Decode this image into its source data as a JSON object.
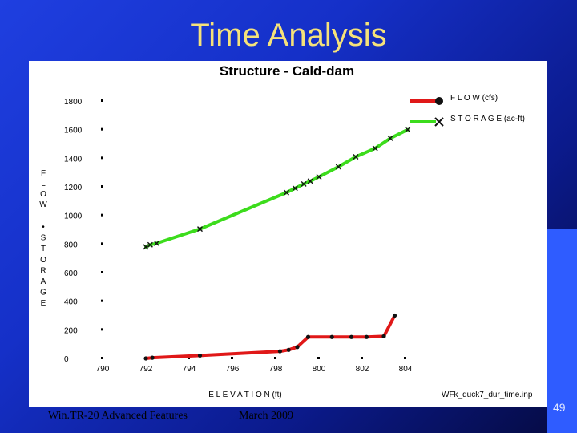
{
  "slide": {
    "title": "Time Analysis",
    "footer_left": "Win.TR-20 Advanced Features",
    "footer_mid": "March 2009",
    "page_number": "49"
  },
  "chart_data": {
    "type": "line",
    "title": "Structure - Cald-dam",
    "xlabel": "E L E V A T I O N (ft)",
    "ylabel_chars": [
      "F",
      "L",
      "O",
      "W",
      "•",
      "S",
      "T",
      "O",
      "R",
      "A",
      "G",
      "E"
    ],
    "xlim": [
      790,
      804
    ],
    "ylim": [
      0,
      1800
    ],
    "x_ticks": [
      "790",
      "792",
      "794",
      "796",
      "798",
      "800",
      "802",
      "804"
    ],
    "y_ticks": [
      "0",
      "200",
      "400",
      "600",
      "800",
      "1000",
      "1200",
      "1400",
      "1600",
      "1800"
    ],
    "file_label": "WFk_duck7_dur_time.inp",
    "legend_position": "top-right",
    "series": [
      {
        "name": "F L O W (cfs)",
        "color": "#e01818",
        "marker": "dot",
        "x": [
          792.0,
          792.3,
          794.5,
          798.2,
          798.6,
          799.0,
          799.5,
          800.6,
          801.5,
          802.2,
          803.0,
          803.5
        ],
        "y": [
          0,
          5,
          20,
          50,
          60,
          80,
          150,
          150,
          150,
          150,
          155,
          300
        ]
      },
      {
        "name": "S T O R A G E (ac-ft)",
        "color": "#3cdc1c",
        "marker": "x",
        "x": [
          792.0,
          792.2,
          792.5,
          794.5,
          798.5,
          798.9,
          799.3,
          799.6,
          800.0,
          800.9,
          801.7,
          802.6,
          803.3,
          804.1
        ],
        "y": [
          780,
          795,
          805,
          905,
          1160,
          1190,
          1220,
          1240,
          1270,
          1340,
          1410,
          1470,
          1540,
          1600
        ]
      }
    ]
  }
}
